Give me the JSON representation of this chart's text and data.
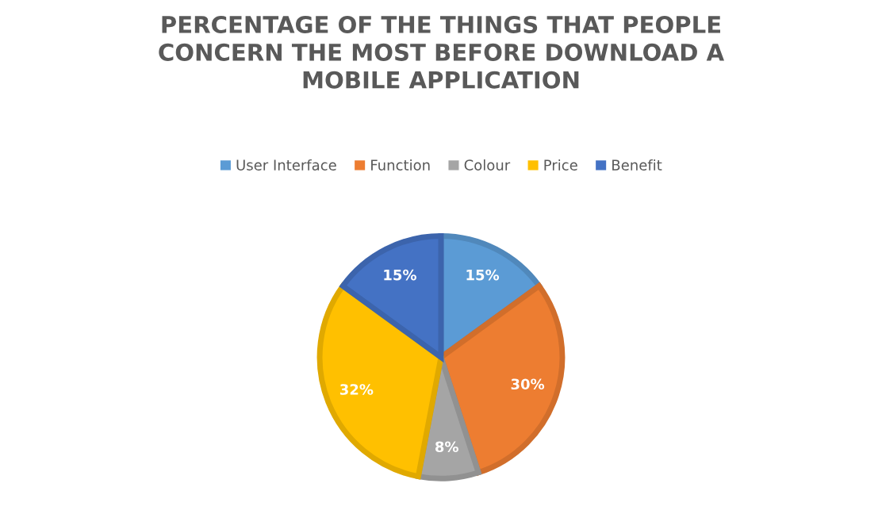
{
  "chart_data": {
    "type": "pie",
    "title": "PERCENTAGE OF THE THINGS THAT PEOPLE\nCONCERN THE MOST BEFORE DOWNLOAD A\nMOBILE APPLICATION",
    "categories": [
      "User Interface",
      "Function",
      "Colour",
      "Price",
      "Benefit"
    ],
    "values": [
      15,
      30,
      8,
      32,
      15
    ],
    "colors": [
      "#5b9bd5",
      "#ed7d31",
      "#a5a5a5",
      "#ffc000",
      "#4472c4"
    ],
    "value_labels": [
      "15%",
      "30%",
      "8%",
      "32%",
      "15%"
    ],
    "legend": "top"
  }
}
